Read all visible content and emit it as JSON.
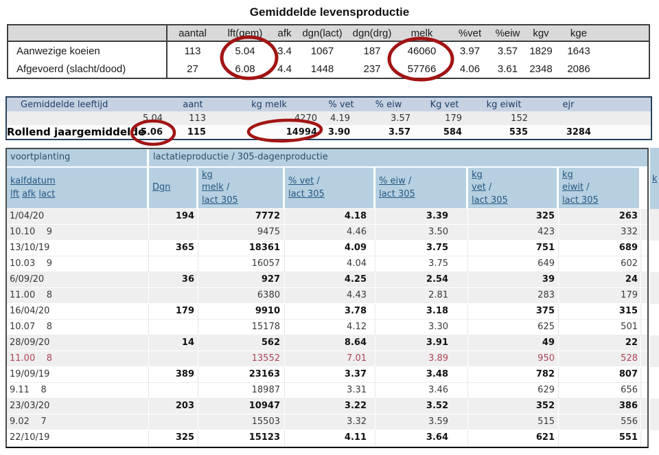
{
  "colors": {
    "circle": "#a21515",
    "link": "#26567f",
    "header_blue": "#b6d0e2",
    "t2_header_bg": "#c6d2e2",
    "alert_row_text": "#ad4557"
  },
  "table1": {
    "title": "Gemiddelde levensproductie",
    "headers": [
      "",
      "aantal",
      "lft(gem)",
      "afk",
      "dgn(lact)",
      "dgn(drg)",
      "melk",
      "%vet",
      "%eiw",
      "kgv",
      "kge"
    ],
    "rows": [
      {
        "label": "Aanwezige koeien",
        "values": [
          "113",
          "5.04",
          "3.4",
          "1067",
          "187",
          "46060",
          "3.97",
          "3.57",
          "1829",
          "1643"
        ]
      },
      {
        "label": "Afgevoerd (slacht/dood)",
        "values": [
          "27",
          "6.08",
          "4.4",
          "1448",
          "237",
          "57766",
          "4.06",
          "3.61",
          "2348",
          "2086"
        ]
      }
    ]
  },
  "table2": {
    "overlay_label": "Rollend jaargemiddelde",
    "headers": [
      "Gemiddelde leeftijd",
      "aant",
      "kg melk",
      "% vet",
      "% eiw",
      "Kg vet",
      "kg eiwit",
      "ejr"
    ],
    "rows": [
      [
        "5.04",
        "113",
        "4270",
        "4.19",
        "3.57",
        "179",
        "152",
        ""
      ],
      [
        "5.06",
        "115",
        "14994",
        "3.90",
        "3.57",
        "584",
        "535",
        "3284"
      ]
    ]
  },
  "table3": {
    "group_headers": [
      "voortplanting",
      "lactatieproductie / 305-dagenproductie"
    ],
    "col_headers": [
      {
        "name": "kalfdatum-lft-afk-lact",
        "lines": [
          [
            [
              "kalfdatum",
              true
            ]
          ],
          [
            [
              "lft",
              true
            ],
            [
              " ",
              false
            ],
            [
              "afk",
              true
            ],
            [
              " ",
              false
            ],
            [
              "lact",
              true
            ]
          ]
        ]
      },
      {
        "name": "dgn",
        "lines": [
          [
            [
              "Dgn",
              true
            ]
          ]
        ]
      },
      {
        "name": "kg-melk-lact305",
        "lines": [
          [
            [
              "kg",
              true
            ]
          ],
          [
            [
              "melk",
              true
            ],
            [
              " /",
              false
            ]
          ],
          [
            [
              "lact 305",
              true
            ]
          ]
        ]
      },
      {
        "name": "pct-vet-lact305",
        "lines": [
          [
            [
              "% vet",
              true
            ],
            [
              " /",
              false
            ]
          ],
          [
            [
              "lact 305",
              true
            ]
          ]
        ]
      },
      {
        "name": "pct-eiw-lact305",
        "lines": [
          [
            [
              "% eiw",
              true
            ],
            [
              " /",
              false
            ]
          ],
          [
            [
              "lact 305",
              true
            ]
          ]
        ]
      },
      {
        "name": "kg-vet-lact305",
        "lines": [
          [
            [
              "kg",
              true
            ]
          ],
          [
            [
              "vet",
              true
            ],
            [
              " /",
              false
            ]
          ],
          [
            [
              "lact 305",
              true
            ]
          ]
        ]
      },
      {
        "name": "kg-eiwit-lact305",
        "lines": [
          [
            [
              "kg",
              true
            ]
          ],
          [
            [
              "eiwit",
              true
            ],
            [
              " /",
              false
            ]
          ],
          [
            [
              "lact 305",
              true
            ]
          ]
        ]
      }
    ],
    "cutoff_column_fragment": "k",
    "rows": [
      {
        "cells": [
          "1/04/20",
          "194",
          "7772",
          "4.18",
          "3.39",
          "325",
          "263"
        ],
        "emphasis": "primary"
      },
      {
        "cells": [
          "10.10    9",
          "",
          "9475",
          "4.46",
          "3.50",
          "423",
          "332"
        ],
        "emphasis": "sub"
      },
      {
        "cells": [
          "13/10/19",
          "365",
          "18361",
          "4.09",
          "3.75",
          "751",
          "689"
        ],
        "emphasis": "primary"
      },
      {
        "cells": [
          "10.03    9",
          "",
          "16057",
          "4.04",
          "3.75",
          "649",
          "602"
        ],
        "emphasis": "sub"
      },
      {
        "cells": [
          "6/09/20",
          "36",
          "927",
          "4.25",
          "2.54",
          "39",
          "24"
        ],
        "emphasis": "primary"
      },
      {
        "cells": [
          "11.00    8",
          "",
          "6380",
          "4.43",
          "2.81",
          "283",
          "179"
        ],
        "emphasis": "sub"
      },
      {
        "cells": [
          "16/04/20",
          "179",
          "9910",
          "3.78",
          "3.18",
          "375",
          "315"
        ],
        "emphasis": "primary"
      },
      {
        "cells": [
          "10.07    8",
          "",
          "15178",
          "4.12",
          "3.30",
          "625",
          "501"
        ],
        "emphasis": "sub"
      },
      {
        "cells": [
          "28/09/20",
          "14",
          "562",
          "8.64",
          "3.91",
          "49",
          "22"
        ],
        "emphasis": "primary"
      },
      {
        "cells": [
          "11.00    8",
          "",
          "13552",
          "7.01",
          "3.89",
          "950",
          "528"
        ],
        "emphasis": "alert"
      },
      {
        "cells": [
          "19/09/19",
          "389",
          "23163",
          "3.37",
          "3.48",
          "782",
          "807"
        ],
        "emphasis": "primary"
      },
      {
        "cells": [
          "9.11    8",
          "",
          "18987",
          "3.31",
          "3.46",
          "629",
          "656"
        ],
        "emphasis": "sub"
      },
      {
        "cells": [
          "23/03/20",
          "203",
          "10947",
          "3.22",
          "3.52",
          "352",
          "386"
        ],
        "emphasis": "primary"
      },
      {
        "cells": [
          "9.02    7",
          "",
          "15503",
          "3.32",
          "3.59",
          "515",
          "556"
        ],
        "emphasis": "sub"
      },
      {
        "cells": [
          "22/10/19",
          "325",
          "15123",
          "4.11",
          "3.64",
          "621",
          "551"
        ],
        "emphasis": "primary"
      }
    ]
  },
  "annotations": {
    "circled_values": [
      "lft(gem) 5.04 / 6.08",
      "melk 46060 / 57766",
      "5.06",
      "14994"
    ]
  }
}
